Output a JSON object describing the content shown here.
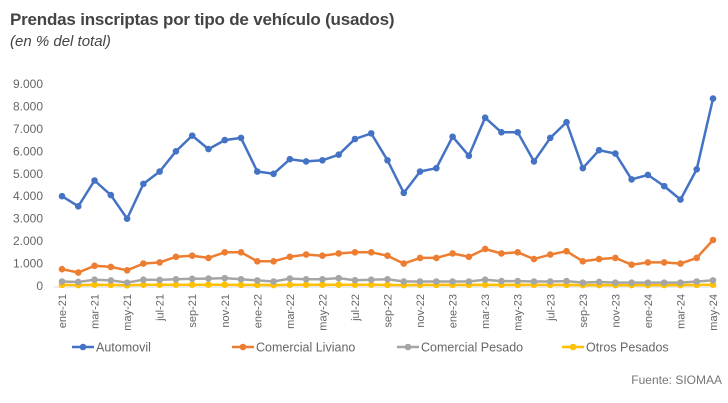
{
  "chart_data": {
    "type": "line",
    "title": "Prendas inscriptas por tipo de vehículo (usados)",
    "subtitle": "(en % del total)",
    "source": "Fuente: SIOMAA",
    "xlabel": "",
    "ylabel": "",
    "ylim": [
      0,
      9000
    ],
    "yticks": [
      "0",
      "1.000",
      "2.000",
      "3.000",
      "4.000",
      "5.000",
      "6.000",
      "7.000",
      "8.000",
      "9.000"
    ],
    "grid": false,
    "legend_position": "bottom",
    "x": [
      "ene-21",
      "feb-21",
      "mar-21",
      "abr-21",
      "may-21",
      "jun-21",
      "jul-21",
      "ago-21",
      "sep-21",
      "oct-21",
      "nov-21",
      "dic-21",
      "ene-22",
      "feb-22",
      "mar-22",
      "abr-22",
      "may-22",
      "jun-22",
      "jul-22",
      "ago-22",
      "sep-22",
      "oct-22",
      "nov-22",
      "dic-22",
      "ene-23",
      "feb-23",
      "mar-23",
      "abr-23",
      "may-23",
      "jun-23",
      "jul-23",
      "ago-23",
      "sep-23",
      "oct-23",
      "nov-23",
      "dic-23",
      "ene-24",
      "feb-24",
      "mar-24",
      "abr-24",
      "may-24"
    ],
    "xtick_labels": [
      "ene-21",
      "mar-21",
      "may-21",
      "jul-21",
      "sep-21",
      "nov-21",
      "ene-22",
      "mar-22",
      "may-22",
      "jul-22",
      "sep-22",
      "nov-22",
      "ene-23",
      "mar-23",
      "may-23",
      "jul-23",
      "sep-23",
      "nov-23",
      "ene-24",
      "mar-24",
      "may-24"
    ],
    "series": [
      {
        "name": "Automovil",
        "color": "#4472C4",
        "values": [
          4000,
          3550,
          4700,
          4050,
          3000,
          4550,
          5100,
          6000,
          6700,
          6100,
          6500,
          6600,
          5100,
          5000,
          5650,
          5550,
          5600,
          5850,
          6550,
          6800,
          5600,
          4150,
          5100,
          5250,
          6650,
          5800,
          7500,
          6850,
          6850,
          5550,
          6600,
          7300,
          5250,
          6050,
          5900,
          4750,
          4950,
          4450,
          3850,
          5200,
          8350
        ]
      },
      {
        "name": "Comercial Liviano",
        "color": "#ED7D31",
        "values": [
          750,
          600,
          900,
          850,
          700,
          1000,
          1050,
          1300,
          1350,
          1250,
          1500,
          1500,
          1100,
          1100,
          1300,
          1400,
          1350,
          1450,
          1500,
          1500,
          1350,
          1000,
          1250,
          1250,
          1450,
          1300,
          1650,
          1450,
          1500,
          1200,
          1400,
          1550,
          1100,
          1200,
          1250,
          950,
          1050,
          1050,
          1000,
          1250,
          2050
        ]
      },
      {
        "name": "Comercial Pesado",
        "color": "#A5A5A5",
        "values": [
          200,
          180,
          280,
          250,
          150,
          280,
          270,
          300,
          320,
          330,
          350,
          300,
          250,
          200,
          330,
          300,
          300,
          350,
          260,
          280,
          300,
          200,
          200,
          200,
          200,
          200,
          280,
          220,
          220,
          200,
          200,
          220,
          150,
          180,
          150,
          150,
          150,
          150,
          150,
          200,
          250
        ]
      },
      {
        "name": "Otros Pesados",
        "color": "#FFC000",
        "values": [
          50,
          40,
          60,
          50,
          30,
          60,
          60,
          60,
          60,
          60,
          60,
          50,
          50,
          40,
          60,
          60,
          60,
          60,
          60,
          60,
          50,
          40,
          50,
          50,
          50,
          50,
          60,
          50,
          50,
          50,
          50,
          50,
          40,
          40,
          40,
          40,
          40,
          40,
          40,
          50,
          60
        ]
      }
    ]
  }
}
